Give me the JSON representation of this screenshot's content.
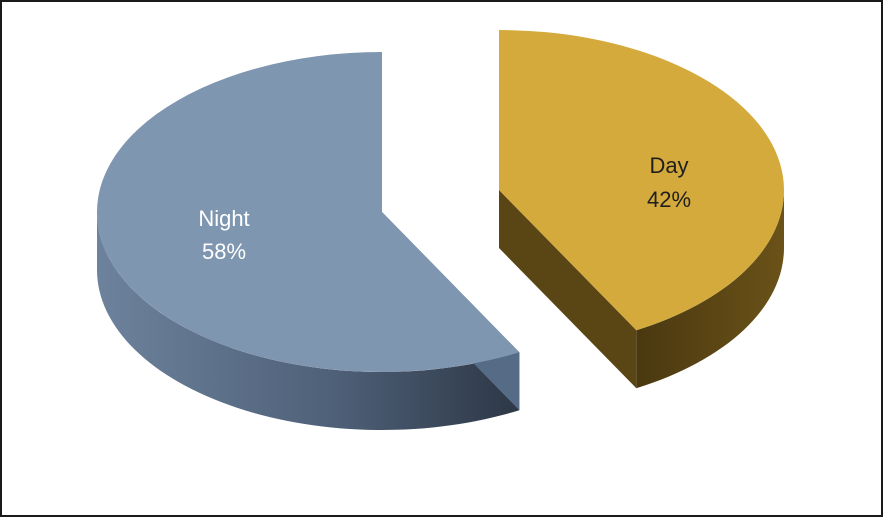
{
  "chart_data": {
    "type": "pie",
    "style": "3d-exploded",
    "legend": "none",
    "slices": [
      {
        "label": "Night",
        "value": 58,
        "percent_label": "58%",
        "color": "#7f96b1",
        "side_color": "#566c86",
        "text_color": "#ffffff"
      },
      {
        "label": "Day",
        "value": 42,
        "percent_label": "42%",
        "color": "#d4aa3c",
        "side_color": "#5a4514",
        "text_color": "#1f1f1f"
      }
    ]
  }
}
